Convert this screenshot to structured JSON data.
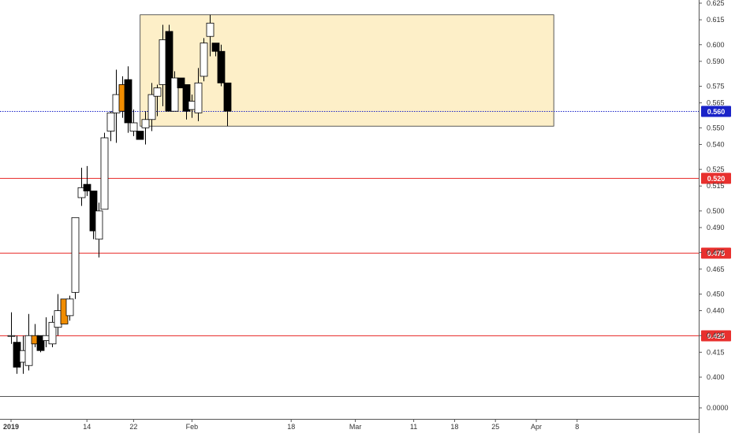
{
  "chart_data": {
    "type": "candlestick",
    "y_axis": {
      "position": "right",
      "ticks": [
        "0.625",
        "0.615",
        "0.600",
        "0.590",
        "0.575",
        "0.565",
        "0.550",
        "0.540",
        "0.525",
        "0.515",
        "0.500",
        "0.490",
        "0.475",
        "0.465",
        "0.450",
        "0.440",
        "0.425",
        "0.415",
        "0.400"
      ],
      "tick_values": [
        0.625,
        0.615,
        0.6,
        0.59,
        0.575,
        0.565,
        0.55,
        0.54,
        0.525,
        0.515,
        0.5,
        0.49,
        0.475,
        0.465,
        0.45,
        0.44,
        0.425,
        0.415,
        0.4
      ],
      "lower_pane_tick": "0.0000",
      "range": [
        0.393,
        0.628
      ]
    },
    "x_axis": {
      "labels": [
        {
          "text": "2019",
          "day": 0,
          "bold": true
        },
        {
          "text": "14",
          "day": 13
        },
        {
          "text": "22",
          "day": 21
        },
        {
          "text": "Feb",
          "day": 31
        },
        {
          "text": "18",
          "day": 48
        },
        {
          "text": "Mar",
          "day": 59
        },
        {
          "text": "11",
          "day": 69
        },
        {
          "text": "18",
          "day": 76
        },
        {
          "text": "25",
          "day": 83
        },
        {
          "text": "Apr",
          "day": 90
        },
        {
          "text": "8",
          "day": 97
        }
      ]
    },
    "horizontal_lines": [
      {
        "value": 0.52,
        "label": "0.520",
        "color": "#e8302e",
        "style": "solid"
      },
      {
        "value": 0.475,
        "label": "0.475",
        "color": "#e8302e",
        "style": "solid"
      },
      {
        "value": 0.425,
        "label": "0.425",
        "color": "#e8302e",
        "style": "solid"
      },
      {
        "value": 0.56,
        "label": "0.560",
        "color": "#1a23c8",
        "style": "dotted"
      }
    ],
    "highlight_zone": {
      "from_day": 23,
      "to_day": 93,
      "top": 0.618,
      "bottom": 0.551,
      "fill": "#fdefc8",
      "stroke": "#333333"
    },
    "candles": [
      {
        "day": 0,
        "o": 0.425,
        "h": 0.439,
        "l": 0.42,
        "c": 0.425,
        "color": "up"
      },
      {
        "day": 1,
        "o": 0.421,
        "h": 0.425,
        "l": 0.402,
        "c": 0.406,
        "color": "down"
      },
      {
        "day": 2,
        "o": 0.409,
        "h": 0.425,
        "l": 0.402,
        "c": 0.416,
        "color": "up"
      },
      {
        "day": 3,
        "o": 0.407,
        "h": 0.438,
        "l": 0.404,
        "c": 0.425,
        "color": "up"
      },
      {
        "day": 4,
        "o": 0.425,
        "h": 0.432,
        "l": 0.418,
        "c": 0.42,
        "color": "orange"
      },
      {
        "day": 5,
        "o": 0.425,
        "h": 0.425,
        "l": 0.415,
        "c": 0.416,
        "color": "down"
      },
      {
        "day": 6,
        "o": 0.422,
        "h": 0.436,
        "l": 0.418,
        "c": 0.425,
        "color": "up"
      },
      {
        "day": 7,
        "o": 0.42,
        "h": 0.437,
        "l": 0.418,
        "c": 0.433,
        "color": "up"
      },
      {
        "day": 8,
        "o": 0.43,
        "h": 0.45,
        "l": 0.425,
        "c": 0.44,
        "color": "up"
      },
      {
        "day": 9,
        "o": 0.432,
        "h": 0.447,
        "l": 0.432,
        "c": 0.447,
        "color": "orange"
      },
      {
        "day": 10,
        "o": 0.437,
        "h": 0.449,
        "l": 0.434,
        "c": 0.447,
        "color": "up"
      },
      {
        "day": 11,
        "o": 0.451,
        "h": 0.496,
        "l": 0.447,
        "c": 0.496,
        "color": "up"
      },
      {
        "day": 12,
        "o": 0.508,
        "h": 0.526,
        "l": 0.503,
        "c": 0.514,
        "color": "up"
      },
      {
        "day": 13,
        "o": 0.516,
        "h": 0.527,
        "l": 0.509,
        "c": 0.512,
        "color": "down"
      },
      {
        "day": 14,
        "o": 0.512,
        "h": 0.512,
        "l": 0.483,
        "c": 0.488,
        "color": "down"
      },
      {
        "day": 15,
        "o": 0.483,
        "h": 0.505,
        "l": 0.472,
        "c": 0.5,
        "color": "up"
      },
      {
        "day": 16,
        "o": 0.501,
        "h": 0.547,
        "l": 0.501,
        "c": 0.544,
        "color": "up"
      },
      {
        "day": 17,
        "o": 0.548,
        "h": 0.56,
        "l": 0.542,
        "c": 0.559,
        "color": "up"
      },
      {
        "day": 18,
        "o": 0.559,
        "h": 0.585,
        "l": 0.541,
        "c": 0.57,
        "color": "up"
      },
      {
        "day": 19,
        "o": 0.576,
        "h": 0.581,
        "l": 0.556,
        "c": 0.56,
        "color": "orange"
      },
      {
        "day": 20,
        "o": 0.579,
        "h": 0.587,
        "l": 0.547,
        "c": 0.553,
        "color": "down"
      },
      {
        "day": 21,
        "o": 0.553,
        "h": 0.561,
        "l": 0.545,
        "c": 0.548,
        "color": "up"
      },
      {
        "day": 22,
        "o": 0.548,
        "h": 0.548,
        "l": 0.543,
        "c": 0.543,
        "color": "down"
      },
      {
        "day": 23,
        "o": 0.55,
        "h": 0.56,
        "l": 0.54,
        "c": 0.555,
        "color": "up"
      },
      {
        "day": 24,
        "o": 0.555,
        "h": 0.577,
        "l": 0.548,
        "c": 0.57,
        "color": "up"
      },
      {
        "day": 25,
        "o": 0.569,
        "h": 0.576,
        "l": 0.557,
        "c": 0.574,
        "color": "up"
      },
      {
        "day": 26,
        "o": 0.576,
        "h": 0.612,
        "l": 0.563,
        "c": 0.603,
        "color": "up"
      },
      {
        "day": 27,
        "o": 0.608,
        "h": 0.612,
        "l": 0.56,
        "c": 0.56,
        "color": "down"
      },
      {
        "day": 28,
        "o": 0.58,
        "h": 0.584,
        "l": 0.56,
        "c": 0.56,
        "color": "up"
      },
      {
        "day": 29,
        "o": 0.58,
        "h": 0.58,
        "l": 0.574,
        "c": 0.574,
        "color": "down"
      },
      {
        "day": 30,
        "o": 0.576,
        "h": 0.576,
        "l": 0.555,
        "c": 0.56,
        "color": "down"
      },
      {
        "day": 31,
        "o": 0.566,
        "h": 0.57,
        "l": 0.556,
        "c": 0.561,
        "color": "up"
      },
      {
        "day": 32,
        "o": 0.559,
        "h": 0.586,
        "l": 0.554,
        "c": 0.577,
        "color": "up"
      },
      {
        "day": 33,
        "o": 0.581,
        "h": 0.604,
        "l": 0.578,
        "c": 0.601,
        "color": "up"
      },
      {
        "day": 34,
        "o": 0.605,
        "h": 0.618,
        "l": 0.593,
        "c": 0.613,
        "color": "up"
      },
      {
        "day": 35,
        "o": 0.601,
        "h": 0.601,
        "l": 0.593,
        "c": 0.596,
        "color": "down"
      },
      {
        "day": 36,
        "o": 0.596,
        "h": 0.6,
        "l": 0.575,
        "c": 0.577,
        "color": "down"
      },
      {
        "day": 37,
        "o": 0.577,
        "h": 0.577,
        "l": 0.551,
        "c": 0.56,
        "color": "down"
      }
    ]
  }
}
